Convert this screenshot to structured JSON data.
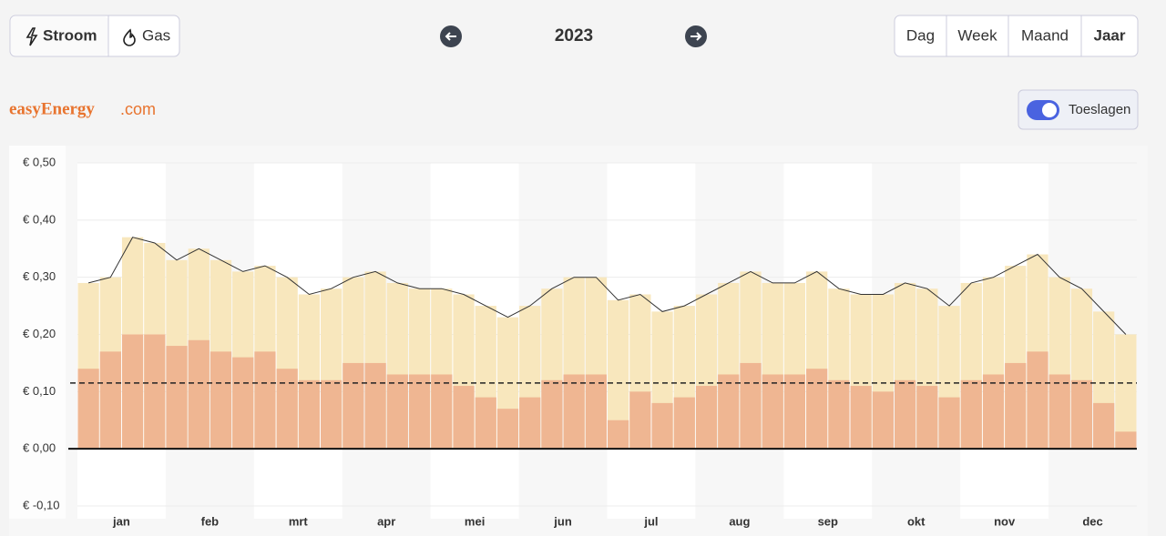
{
  "header": {
    "energy_types": [
      "Stroom",
      "Gas"
    ],
    "year": "2023",
    "periods": [
      "Dag",
      "Week",
      "Maand",
      "Jaar"
    ],
    "logo": {
      "brand": "easyEnergy",
      "suffix": ".com"
    },
    "toggle": "Toeslagen"
  },
  "chart_data": {
    "type": "bar",
    "categories": [
      "jan",
      null,
      null,
      null,
      "feb",
      null,
      null,
      null,
      "mrt",
      null,
      null,
      null,
      "apr",
      null,
      null,
      null,
      "mei",
      null,
      null,
      null,
      "jun",
      null,
      null,
      null,
      "jul",
      null,
      null,
      null,
      "aug",
      null,
      null,
      null,
      "sep",
      null,
      null,
      null,
      "okt",
      null,
      null,
      null,
      "nov",
      null,
      null,
      null,
      "dec",
      null,
      null,
      null
    ],
    "series": [
      {
        "color": "#f8e7bd",
        "line_color": "#333333",
        "values": [
          0.29,
          0.3,
          0.37,
          0.36,
          0.33,
          0.35,
          0.33,
          0.31,
          0.32,
          0.3,
          0.27,
          0.28,
          0.3,
          0.31,
          0.29,
          0.28,
          0.28,
          0.27,
          0.25,
          0.23,
          0.25,
          0.28,
          0.3,
          0.3,
          0.26,
          0.27,
          0.24,
          0.25,
          0.27,
          0.29,
          0.31,
          0.29,
          0.29,
          0.31,
          0.28,
          0.27,
          0.27,
          0.29,
          0.28,
          0.25,
          0.29,
          0.3,
          0.32,
          0.34,
          0.3,
          0.28,
          0.24,
          0.2
        ]
      },
      {
        "color": "#efb692",
        "values": [
          0.14,
          0.17,
          0.2,
          0.2,
          0.18,
          0.19,
          0.17,
          0.16,
          0.17,
          0.14,
          0.12,
          0.12,
          0.15,
          0.15,
          0.13,
          0.13,
          0.13,
          0.11,
          0.09,
          0.07,
          0.09,
          0.12,
          0.13,
          0.13,
          0.05,
          0.1,
          0.08,
          0.09,
          0.11,
          0.13,
          0.15,
          0.13,
          0.13,
          0.14,
          0.12,
          0.11,
          0.1,
          0.12,
          0.11,
          0.09,
          0.12,
          0.13,
          0.15,
          0.17,
          0.13,
          0.12,
          0.08,
          0.03
        ]
      }
    ],
    "reference_line": 0.115,
    "ylim": [
      -0.1,
      0.5
    ],
    "yticks": [
      {
        "value": -0.1,
        "label": "€ -0,10"
      },
      {
        "value": 0,
        "label": "€ 0,00"
      },
      {
        "value": 0.1,
        "label": "€ 0,10"
      },
      {
        "value": 0.2,
        "label": "€ 0,20"
      },
      {
        "value": 0.3,
        "label": "€ 0,30"
      },
      {
        "value": 0.4,
        "label": "€ 0,40"
      },
      {
        "value": 0.5,
        "label": "€ 0,50"
      }
    ],
    "grid": true
  }
}
